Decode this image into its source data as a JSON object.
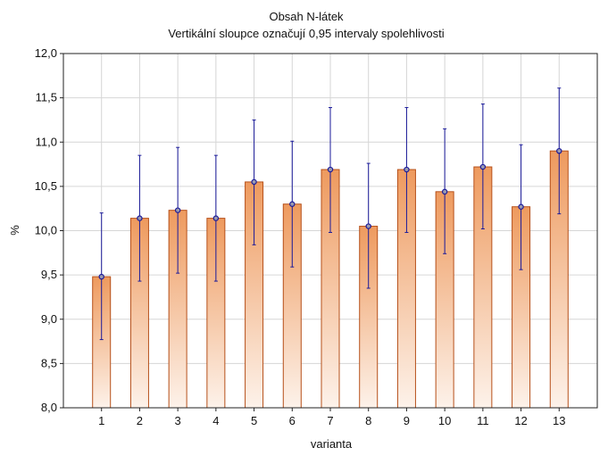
{
  "chart_data": {
    "type": "bar",
    "title": "Obsah N-látek",
    "subtitle": "Vertikální sloupce označují 0,95 intervaly spolehlivosti",
    "xlabel": "varianta",
    "ylabel": "%",
    "ylim": [
      8.0,
      12.0
    ],
    "yticks": [
      "8,0",
      "8,5",
      "9,0",
      "9,5",
      "10,0",
      "10,5",
      "11,0",
      "11,5",
      "12,0"
    ],
    "xlim": [
      0,
      14
    ],
    "categories": [
      "1",
      "2",
      "3",
      "4",
      "5",
      "6",
      "7",
      "8",
      "9",
      "10",
      "11",
      "12",
      "13"
    ],
    "values": [
      9.48,
      10.14,
      10.23,
      10.14,
      10.55,
      10.3,
      10.69,
      10.05,
      10.69,
      10.44,
      10.72,
      10.27,
      10.9
    ],
    "ci_lower": [
      8.77,
      9.43,
      9.52,
      9.43,
      9.84,
      9.59,
      9.98,
      9.35,
      9.98,
      9.74,
      10.02,
      9.56,
      10.19
    ],
    "ci_upper": [
      10.2,
      10.85,
      10.94,
      10.85,
      11.25,
      11.01,
      11.39,
      10.76,
      11.39,
      11.15,
      11.43,
      10.97,
      11.61
    ],
    "grid": true,
    "colors": {
      "bar_top": "#ee9a5e",
      "bar_bottom": "#fdf2ea",
      "bar_stroke": "#b6501a",
      "error_bar": "#1a1a9a",
      "marker_fill": "#9a9ab0",
      "grid": "#d6d6d6",
      "axis": "#222222"
    }
  }
}
